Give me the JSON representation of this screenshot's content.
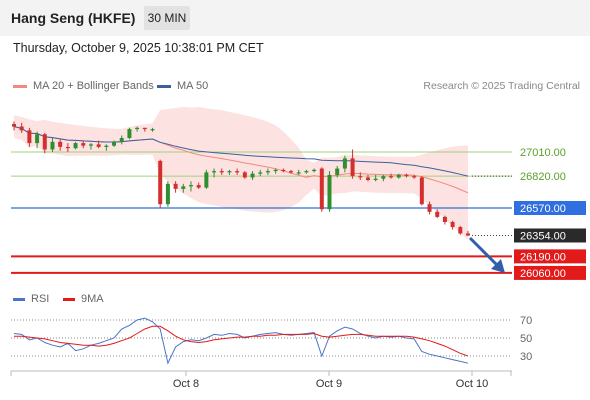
{
  "header": {
    "title": "Hang Seng (HKFE)",
    "timeframe": "30 MIN"
  },
  "timestamp": "Thursday, October 9, 2025 10:38:01 PM CET",
  "legend": {
    "items": [
      {
        "label": "MA 20 + Bollinger Bands",
        "color": "#f4877f"
      },
      {
        "label": "MA 50",
        "color": "#3c5fa0"
      }
    ],
    "credit": "Research © 2025 Trading Central"
  },
  "chart_data": [
    {
      "type": "line",
      "title": "",
      "x": [
        "Oct 8",
        "Oct 9",
        "Oct 10"
      ],
      "price_levels": [
        {
          "value": 27010.0,
          "label": "27010.00",
          "kind": "resistance",
          "color": "#9fd37a"
        },
        {
          "value": 26820.0,
          "label": "26820.00",
          "kind": "resistance",
          "color": "#9fd37a"
        },
        {
          "value": 26570.0,
          "label": "26570.00",
          "kind": "pivot",
          "color": "#2f6fe0"
        },
        {
          "value": 26354.0,
          "label": "26354.00",
          "kind": "last",
          "color": "#2a2a2a"
        },
        {
          "value": 26190.0,
          "label": "26190.00",
          "kind": "support",
          "color": "#e21a1a"
        },
        {
          "value": 26060.0,
          "label": "26060.00",
          "kind": "support",
          "color": "#e21a1a"
        }
      ],
      "series": [
        {
          "name": "MA 20 + Bollinger Bands",
          "color": "#f4877f"
        },
        {
          "name": "MA 50",
          "color": "#3c5fa0"
        }
      ],
      "candles": [
        [
          27230,
          27250,
          27180,
          27210
        ],
        [
          27210,
          27240,
          27160,
          27180
        ],
        [
          27180,
          27200,
          27050,
          27080
        ],
        [
          27080,
          27170,
          27040,
          27150
        ],
        [
          27150,
          27160,
          27000,
          27030
        ],
        [
          27030,
          27120,
          27010,
          27090
        ],
        [
          27090,
          27110,
          27020,
          27050
        ],
        [
          27050,
          27080,
          27010,
          27040
        ],
        [
          27040,
          27090,
          27030,
          27080
        ],
        [
          27080,
          27100,
          27040,
          27060
        ],
        [
          27060,
          27080,
          27030,
          27070
        ],
        [
          27070,
          27100,
          27040,
          27050
        ],
        [
          27050,
          27070,
          27020,
          27060
        ],
        [
          27060,
          27100,
          27050,
          27090
        ],
        [
          27090,
          27140,
          27070,
          27120
        ],
        [
          27120,
          27200,
          27110,
          27190
        ],
        [
          27190,
          27210,
          27170,
          27200
        ],
        [
          27200,
          27200,
          27170,
          27190
        ],
        [
          27190,
          27200,
          27170,
          27190
        ],
        [
          26940,
          26950,
          26570,
          26600
        ],
        [
          26600,
          26780,
          26580,
          26760
        ],
        [
          26760,
          26780,
          26690,
          26720
        ],
        [
          26720,
          26760,
          26690,
          26740
        ],
        [
          26740,
          26780,
          26700,
          26750
        ],
        [
          26750,
          26770,
          26720,
          26730
        ],
        [
          26730,
          26870,
          26720,
          26850
        ],
        [
          26850,
          26880,
          26810,
          26860
        ],
        [
          26860,
          26880,
          26830,
          26850
        ],
        [
          26850,
          26870,
          26830,
          26860
        ],
        [
          26860,
          26880,
          26830,
          26850
        ],
        [
          26850,
          26860,
          26800,
          26810
        ],
        [
          26810,
          26860,
          26790,
          26840
        ],
        [
          26840,
          26870,
          26820,
          26850
        ],
        [
          26850,
          26880,
          26830,
          26860
        ],
        [
          26860,
          26880,
          26840,
          26870
        ],
        [
          26870,
          26880,
          26850,
          26860
        ],
        [
          26860,
          26870,
          26840,
          26850
        ],
        [
          26850,
          26870,
          26830,
          26850
        ],
        [
          26850,
          26870,
          26840,
          26860
        ],
        [
          26860,
          26880,
          26850,
          26870
        ],
        [
          26880,
          26890,
          26540,
          26560
        ],
        [
          26560,
          26860,
          26540,
          26830
        ],
        [
          26830,
          26900,
          26810,
          26880
        ],
        [
          26880,
          26980,
          26850,
          26960
        ],
        [
          26960,
          27030,
          26800,
          26820
        ],
        [
          26820,
          26850,
          26790,
          26810
        ],
        [
          26810,
          26830,
          26780,
          26790
        ],
        [
          26790,
          26830,
          26780,
          26800
        ],
        [
          26800,
          26830,
          26780,
          26820
        ],
        [
          26820,
          26840,
          26800,
          26810
        ],
        [
          26810,
          26840,
          26800,
          26830
        ],
        [
          26830,
          26840,
          26810,
          26820
        ],
        [
          26820,
          26830,
          26800,
          26810
        ],
        [
          26810,
          26820,
          26590,
          26600
        ],
        [
          26600,
          26620,
          26520,
          26540
        ],
        [
          26540,
          26560,
          26490,
          26500
        ],
        [
          26500,
          26510,
          26440,
          26460
        ],
        [
          26460,
          26470,
          26400,
          26420
        ],
        [
          26420,
          26430,
          26360,
          26370
        ],
        [
          26370,
          26390,
          26350,
          26354
        ]
      ]
    },
    {
      "type": "line",
      "title": "",
      "legend": [
        {
          "label": "RSI",
          "color": "#4a74c9"
        },
        {
          "label": "9MA",
          "color": "#e21a1a"
        }
      ],
      "yticks": [
        "70",
        "50",
        "30"
      ],
      "ylim": [
        0,
        100
      ],
      "series": [
        {
          "name": "RSI",
          "color": "#4a74c9",
          "values": [
            55,
            54,
            48,
            50,
            45,
            42,
            40,
            44,
            36,
            38,
            42,
            44,
            47,
            50,
            60,
            64,
            70,
            72,
            68,
            60,
            22,
            40,
            46,
            48,
            47,
            50,
            54,
            53,
            55,
            54,
            50,
            52,
            54,
            55,
            56,
            54,
            53,
            54,
            55,
            56,
            30,
            52,
            58,
            62,
            60,
            55,
            52,
            50,
            52,
            51,
            52,
            50,
            49,
            35,
            32,
            30,
            28,
            26,
            24,
            22
          ]
        },
        {
          "name": "9MA",
          "color": "#e21a1a",
          "values": [
            52,
            52,
            51,
            50,
            49,
            47,
            45,
            44,
            43,
            42,
            42,
            41,
            42,
            44,
            47,
            50,
            55,
            60,
            63,
            63,
            58,
            52,
            48,
            46,
            45,
            46,
            48,
            49,
            50,
            51,
            51,
            52,
            52,
            53,
            53,
            54,
            54,
            54,
            54,
            55,
            52,
            51,
            52,
            53,
            54,
            54,
            53,
            52,
            52,
            52,
            52,
            52,
            51,
            49,
            47,
            44,
            41,
            37,
            33,
            30
          ]
        }
      ]
    }
  ]
}
